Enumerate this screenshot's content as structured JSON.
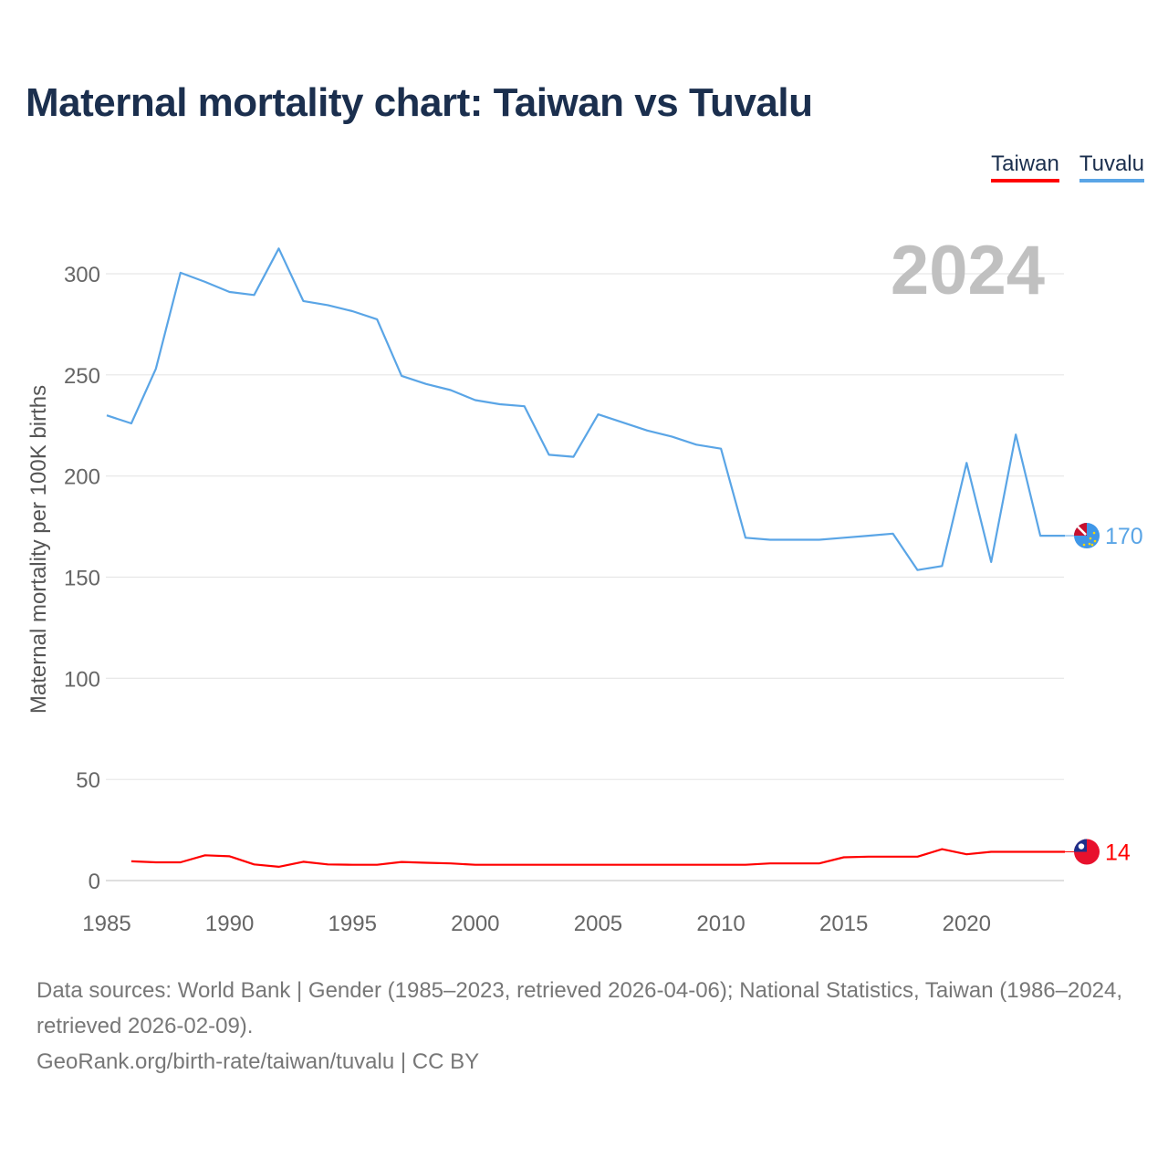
{
  "title": "Maternal mortality chart: Taiwan vs Tuvalu",
  "legend": [
    {
      "label": "Taiwan",
      "color": "#ff0000"
    },
    {
      "label": "Tuvalu",
      "color": "#5aa5e6"
    }
  ],
  "year_label": "2024",
  "footer": {
    "sources": "Data sources: World Bank | Gender (1985–2023, retrieved 2026-04-06); National Statistics, Taiwan (1986–2024, retrieved 2026-02-09).",
    "credit": "GeoRank.org/birth-rate/taiwan/tuvalu | CC BY"
  },
  "chart_data": {
    "type": "line",
    "title": "Maternal mortality chart: Taiwan vs Tuvalu",
    "xlabel": "",
    "ylabel": "Maternal mortality per 100K births",
    "xlim": [
      1985,
      2024
    ],
    "ylim": [
      0,
      325
    ],
    "xticks": [
      1985,
      1990,
      1995,
      2000,
      2005,
      2010,
      2015,
      2020
    ],
    "yticks": [
      0,
      50,
      100,
      150,
      200,
      250,
      300
    ],
    "grid": true,
    "legend_position": "top-right",
    "series": [
      {
        "name": "Taiwan",
        "color": "#ff0000",
        "end_label": "14",
        "icon": "taiwan-flag-icon",
        "x": [
          1986,
          1987,
          1988,
          1989,
          1990,
          1991,
          1992,
          1993,
          1994,
          1995,
          1996,
          1997,
          1998,
          1999,
          2000,
          2001,
          2002,
          2003,
          2004,
          2005,
          2006,
          2007,
          2008,
          2009,
          2010,
          2011,
          2012,
          2013,
          2014,
          2015,
          2016,
          2017,
          2018,
          2019,
          2020,
          2021,
          2022,
          2023,
          2024
        ],
        "values": [
          9.5,
          9,
          9,
          12.5,
          12,
          8,
          6.8,
          9.3,
          8,
          7.8,
          7.8,
          9.2,
          8.8,
          8.5,
          7.8,
          7.8,
          7.8,
          7.8,
          7.8,
          7.8,
          7.8,
          7.8,
          7.8,
          7.8,
          7.8,
          7.8,
          8.5,
          8.5,
          8.5,
          11.5,
          11.8,
          11.8,
          11.8,
          15.5,
          13,
          14.2,
          14.2,
          14.2,
          14.2
        ]
      },
      {
        "name": "Tuvalu",
        "color": "#5aa5e6",
        "end_label": "170",
        "icon": "tuvalu-flag-icon",
        "x": [
          1985,
          1986,
          1987,
          1988,
          1989,
          1990,
          1991,
          1992,
          1993,
          1994,
          1995,
          1996,
          1997,
          1998,
          1999,
          2000,
          2001,
          2002,
          2003,
          2004,
          2005,
          2006,
          2007,
          2008,
          2009,
          2010,
          2011,
          2012,
          2013,
          2014,
          2015,
          2016,
          2017,
          2018,
          2019,
          2020,
          2021,
          2022,
          2023,
          2024
        ],
        "values": [
          230,
          226,
          253,
          300.5,
          296,
          291,
          289.5,
          312.5,
          286.5,
          284.5,
          281.5,
          277.5,
          249.5,
          245.5,
          242.5,
          237.5,
          235.5,
          234.5,
          210.5,
          209.5,
          230.5,
          226.5,
          222.5,
          219.5,
          215.5,
          213.5,
          169.5,
          168.5,
          168.5,
          168.5,
          169.5,
          170.5,
          171.5,
          153.5,
          155.5,
          206.5,
          157.5,
          220.5,
          170.5,
          170.5
        ]
      }
    ]
  }
}
